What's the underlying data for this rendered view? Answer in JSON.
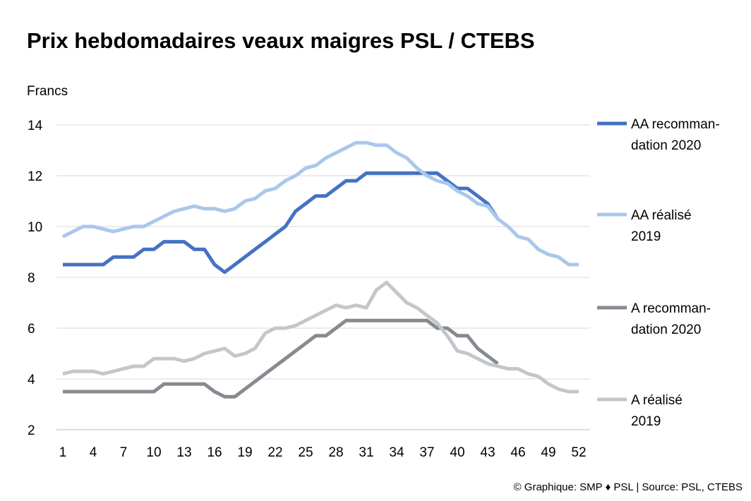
{
  "chart_data": {
    "type": "line",
    "title": "Prix hebdomadaires veaux maigres PSL / CTEBS",
    "ylabel": "Francs",
    "xlabel": "",
    "ylim": [
      2,
      14
    ],
    "yticks": [
      2,
      4,
      6,
      8,
      10,
      12,
      14
    ],
    "xlim": [
      1,
      52
    ],
    "xticks": [
      1,
      4,
      7,
      10,
      13,
      16,
      19,
      22,
      25,
      28,
      31,
      34,
      37,
      40,
      43,
      46,
      49,
      52
    ],
    "grid": "horizontal",
    "legend_position": "right",
    "series": [
      {
        "name_lines": [
          "AA recomman-",
          "dation  2020"
        ],
        "color": "#4472c4",
        "x": [
          1,
          2,
          3,
          4,
          5,
          6,
          7,
          8,
          9,
          10,
          11,
          12,
          13,
          14,
          15,
          16,
          17,
          18,
          19,
          20,
          21,
          22,
          23,
          24,
          25,
          26,
          27,
          28,
          29,
          30,
          31,
          32,
          33,
          34,
          35,
          36,
          37,
          38,
          39,
          40,
          41,
          42,
          43,
          44
        ],
        "values": [
          8.5,
          8.5,
          8.5,
          8.5,
          8.5,
          8.8,
          8.8,
          8.8,
          9.1,
          9.1,
          9.4,
          9.4,
          9.4,
          9.1,
          9.1,
          8.5,
          8.2,
          8.5,
          8.8,
          9.1,
          9.4,
          9.7,
          10.0,
          10.6,
          10.9,
          11.2,
          11.2,
          11.5,
          11.8,
          11.8,
          12.1,
          12.1,
          12.1,
          12.1,
          12.1,
          12.1,
          12.1,
          12.1,
          11.8,
          11.5,
          11.5,
          11.2,
          10.9,
          10.3
        ]
      },
      {
        "name_lines": [
          "AA réalisé",
          "2019"
        ],
        "color": "#a9c8ea",
        "x": [
          1,
          2,
          3,
          4,
          5,
          6,
          7,
          8,
          9,
          10,
          11,
          12,
          13,
          14,
          15,
          16,
          17,
          18,
          19,
          20,
          21,
          22,
          23,
          24,
          25,
          26,
          27,
          28,
          29,
          30,
          31,
          32,
          33,
          34,
          35,
          36,
          37,
          38,
          39,
          40,
          41,
          42,
          43,
          44,
          45,
          46,
          47,
          48,
          49,
          50,
          51,
          52
        ],
        "values": [
          9.6,
          9.8,
          10.0,
          10.0,
          9.9,
          9.8,
          9.9,
          10.0,
          10.0,
          10.2,
          10.4,
          10.6,
          10.7,
          10.8,
          10.7,
          10.7,
          10.6,
          10.7,
          11.0,
          11.1,
          11.4,
          11.5,
          11.8,
          12.0,
          12.3,
          12.4,
          12.7,
          12.9,
          13.1,
          13.3,
          13.3,
          13.2,
          13.2,
          12.9,
          12.7,
          12.3,
          12.0,
          11.8,
          11.7,
          11.4,
          11.2,
          10.9,
          10.8,
          10.3,
          10.0,
          9.6,
          9.5,
          9.1,
          8.9,
          8.8,
          8.5,
          8.5
        ]
      },
      {
        "name_lines": [
          "A recomman-",
          "dation 2020"
        ],
        "color": "#858b90",
        "x": [
          1,
          2,
          3,
          4,
          5,
          6,
          7,
          8,
          9,
          10,
          11,
          12,
          13,
          14,
          15,
          16,
          17,
          18,
          19,
          20,
          21,
          22,
          23,
          24,
          25,
          26,
          27,
          28,
          29,
          30,
          31,
          32,
          33,
          34,
          35,
          36,
          37,
          38,
          39,
          40,
          41,
          42,
          43,
          44
        ],
        "values": [
          3.5,
          3.5,
          3.5,
          3.5,
          3.5,
          3.5,
          3.5,
          3.5,
          3.5,
          3.5,
          3.8,
          3.8,
          3.8,
          3.8,
          3.8,
          3.5,
          3.3,
          3.3,
          3.6,
          3.9,
          4.2,
          4.5,
          4.8,
          5.1,
          5.4,
          5.7,
          5.7,
          6.0,
          6.3,
          6.3,
          6.3,
          6.3,
          6.3,
          6.3,
          6.3,
          6.3,
          6.3,
          6.0,
          6.0,
          5.7,
          5.7,
          5.2,
          4.9,
          4.6
        ]
      },
      {
        "name_lines": [
          "A réalisé",
          "2019"
        ],
        "color": "#c3c7cb",
        "x": [
          1,
          2,
          3,
          4,
          5,
          6,
          7,
          8,
          9,
          10,
          11,
          12,
          13,
          14,
          15,
          16,
          17,
          18,
          19,
          20,
          21,
          22,
          23,
          24,
          25,
          26,
          27,
          28,
          29,
          30,
          31,
          32,
          33,
          34,
          35,
          36,
          37,
          38,
          39,
          40,
          41,
          42,
          43,
          44,
          45,
          46,
          47,
          48,
          49,
          50,
          51,
          52
        ],
        "values": [
          4.2,
          4.3,
          4.3,
          4.3,
          4.2,
          4.3,
          4.4,
          4.5,
          4.5,
          4.8,
          4.8,
          4.8,
          4.7,
          4.8,
          5.0,
          5.1,
          5.2,
          4.9,
          5.0,
          5.2,
          5.8,
          6.0,
          6.0,
          6.1,
          6.3,
          6.5,
          6.7,
          6.9,
          6.8,
          6.9,
          6.8,
          7.5,
          7.8,
          7.4,
          7.0,
          6.8,
          6.5,
          6.2,
          5.7,
          5.1,
          5.0,
          4.8,
          4.6,
          4.5,
          4.4,
          4.4,
          4.2,
          4.1,
          3.8,
          3.6,
          3.5,
          3.5
        ]
      }
    ]
  },
  "credit": "© Graphique: SMP ♦ PSL | Source: PSL, CTEBS"
}
